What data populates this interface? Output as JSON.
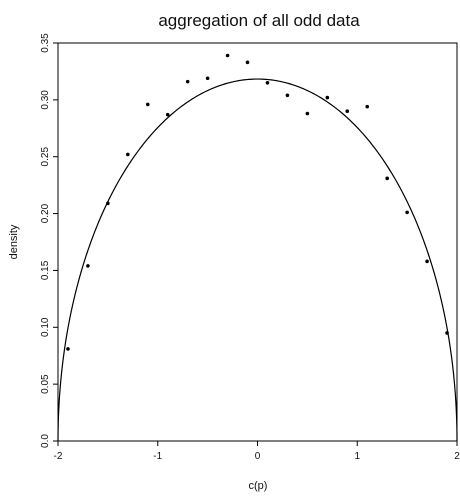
{
  "chart_data": {
    "type": "scatter",
    "title": "aggregation of all odd data",
    "xlabel": "c(p)",
    "ylabel": "density",
    "xlim": [
      -2,
      2
    ],
    "ylim": [
      0,
      0.35
    ],
    "x_ticks": [
      -2,
      -1,
      0,
      1,
      2
    ],
    "x_tick_labels": [
      "-2",
      "-1",
      "0",
      "1",
      "2"
    ],
    "y_ticks": [
      0.0,
      0.05,
      0.1,
      0.15,
      0.2,
      0.25,
      0.3,
      0.35
    ],
    "y_tick_labels": [
      "0.0",
      "0.05",
      "0.10",
      "0.15",
      "0.20",
      "0.25",
      "0.30",
      "0.35"
    ],
    "grid": false,
    "legend": "none",
    "series": [
      {
        "kind": "points",
        "x": [
          -1.9,
          -1.7,
          -1.5,
          -1.3,
          -1.1,
          -0.9,
          -0.7,
          -0.5,
          -0.3,
          -0.1,
          0.1,
          0.3,
          0.5,
          0.7,
          0.9,
          1.1,
          1.3,
          1.5,
          1.7,
          1.9
        ],
        "y": [
          0.081,
          0.154,
          0.209,
          0.252,
          0.296,
          0.287,
          0.316,
          0.319,
          0.339,
          0.333,
          0.315,
          0.304,
          0.288,
          0.302,
          0.29,
          0.294,
          0.231,
          0.201,
          0.158,
          0.095
        ]
      },
      {
        "kind": "curve",
        "function": "semicircle",
        "radius": 2,
        "peak": 0.3183
      }
    ]
  }
}
